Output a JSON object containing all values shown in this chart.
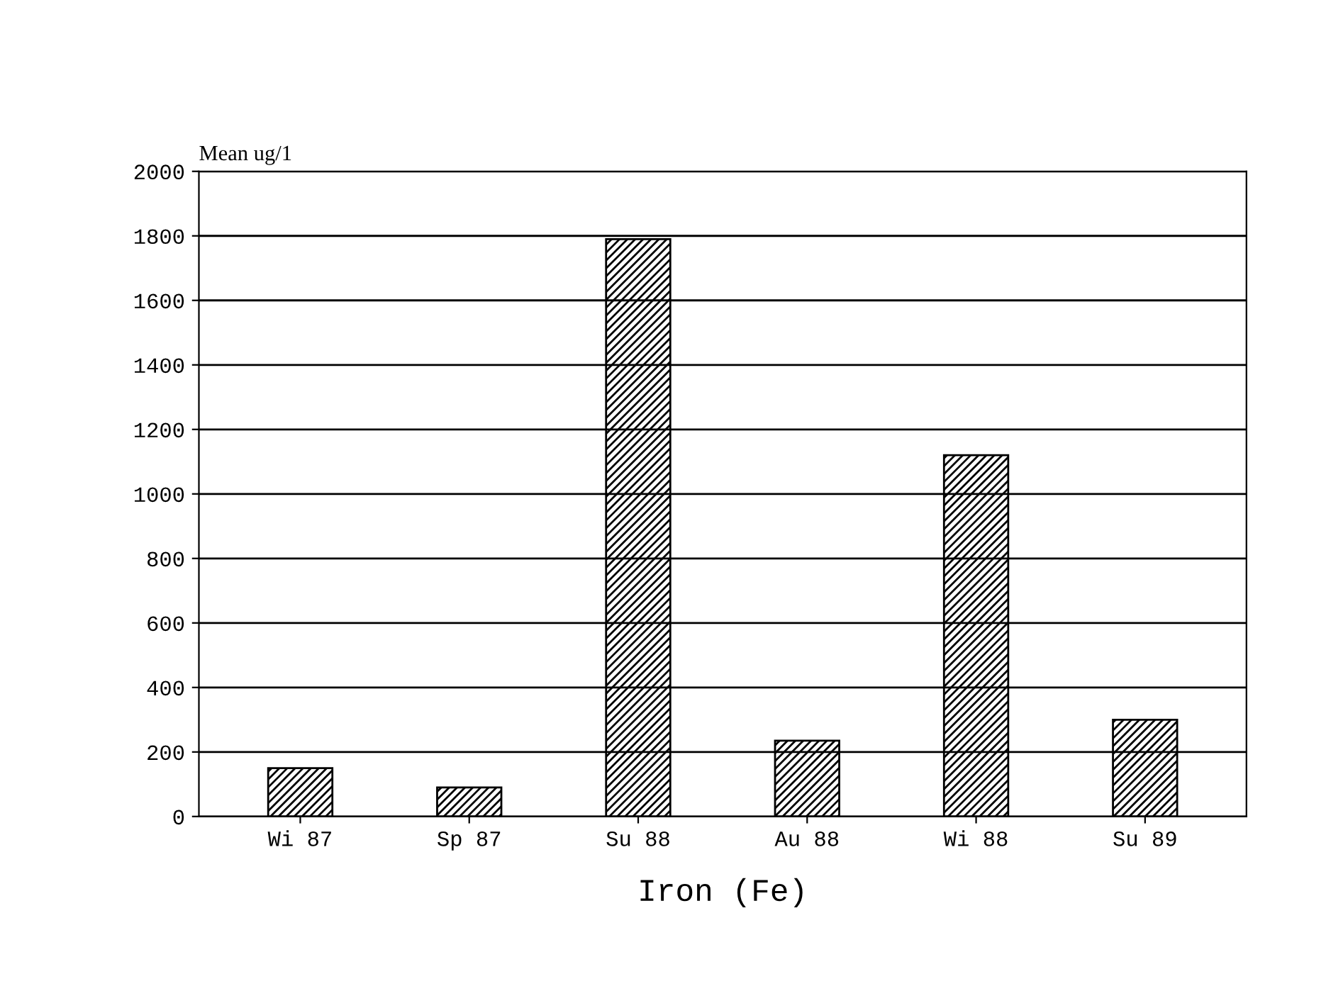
{
  "chart_data": {
    "type": "bar",
    "xlabel": "Iron (Fe)",
    "ylabel": "Mean ug/1",
    "categories": [
      "Wi 87",
      "Sp 87",
      "Su 88",
      "Au 88",
      "Wi 88",
      "Su 89"
    ],
    "values": [
      150,
      90,
      1790,
      235,
      1120,
      300
    ],
    "color": "#000000",
    "ylim": [
      0,
      2000
    ],
    "yticks": [
      0,
      200,
      400,
      600,
      800,
      1000,
      1200,
      1400,
      1600,
      1800,
      2000
    ],
    "grid": "y"
  }
}
